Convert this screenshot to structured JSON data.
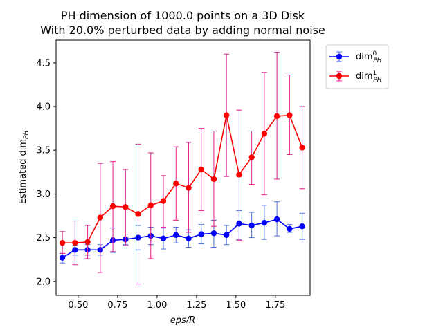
{
  "chart_data": {
    "type": "line",
    "title": "PH dimension of 1000.0 points on a 3D Disk",
    "subtitle": "With 20.0% perturbed data by adding normal noise",
    "xlabel": "eps/R",
    "ylabel": "Estimated dim",
    "ylabel_sub": "PH",
    "xlim": [
      0.36,
      1.97
    ],
    "ylim": [
      1.84,
      4.76
    ],
    "xticks": [
      0.5,
      0.75,
      1.0,
      1.25,
      1.5,
      1.75
    ],
    "xtick_labels": [
      "0.50",
      "0.75",
      "1.00",
      "1.25",
      "1.50",
      "1.75"
    ],
    "yticks": [
      2.0,
      2.5,
      3.0,
      3.5,
      4.0,
      4.5
    ],
    "ytick_labels": [
      "2.0",
      "2.5",
      "3.0",
      "3.5",
      "4.0",
      "4.5"
    ],
    "grid": false,
    "legend_position": "upper right outside",
    "x": [
      0.4,
      0.48,
      0.56,
      0.64,
      0.72,
      0.8,
      0.88,
      0.96,
      1.04,
      1.12,
      1.2,
      1.28,
      1.36,
      1.44,
      1.52,
      1.6,
      1.68,
      1.76,
      1.84,
      1.92
    ],
    "series": [
      {
        "name": "dim",
        "name_sup": "0",
        "name_sub": "PH",
        "color": "#0000ff",
        "errcolor": "#4a6fe0",
        "values": [
          2.27,
          2.36,
          2.36,
          2.36,
          2.47,
          2.48,
          2.5,
          2.52,
          2.49,
          2.53,
          2.49,
          2.54,
          2.55,
          2.53,
          2.66,
          2.64,
          2.67,
          2.71,
          2.6,
          2.63
        ],
        "lower": [
          2.21,
          2.3,
          2.3,
          2.3,
          2.33,
          2.42,
          2.36,
          2.42,
          2.37,
          2.44,
          2.39,
          2.43,
          2.39,
          2.42,
          2.48,
          2.5,
          2.48,
          2.52,
          2.56,
          2.48
        ],
        "upper": [
          2.32,
          2.41,
          2.42,
          2.42,
          2.61,
          2.54,
          2.64,
          2.62,
          2.61,
          2.62,
          2.59,
          2.65,
          2.7,
          2.64,
          2.81,
          2.79,
          2.87,
          2.91,
          2.65,
          2.78
        ]
      },
      {
        "name": "dim",
        "name_sup": "1",
        "name_sub": "PH",
        "color": "#ff0000",
        "errcolor": "#e0208c",
        "values": [
          2.44,
          2.44,
          2.45,
          2.73,
          2.86,
          2.85,
          2.77,
          2.87,
          2.92,
          3.12,
          3.07,
          3.28,
          3.17,
          3.9,
          3.22,
          3.42,
          3.69,
          3.89,
          3.9,
          3.53
        ],
        "lower": [
          2.32,
          2.19,
          2.26,
          2.1,
          2.34,
          2.41,
          1.97,
          2.26,
          2.62,
          2.7,
          2.56,
          2.81,
          2.63,
          3.2,
          2.47,
          3.11,
          2.99,
          3.17,
          3.45,
          3.06
        ],
        "upper": [
          2.57,
          2.69,
          2.64,
          3.35,
          3.37,
          3.28,
          3.57,
          3.47,
          3.21,
          3.54,
          3.59,
          3.75,
          3.72,
          4.6,
          3.96,
          3.72,
          4.39,
          4.62,
          4.36,
          4.0
        ]
      }
    ]
  }
}
